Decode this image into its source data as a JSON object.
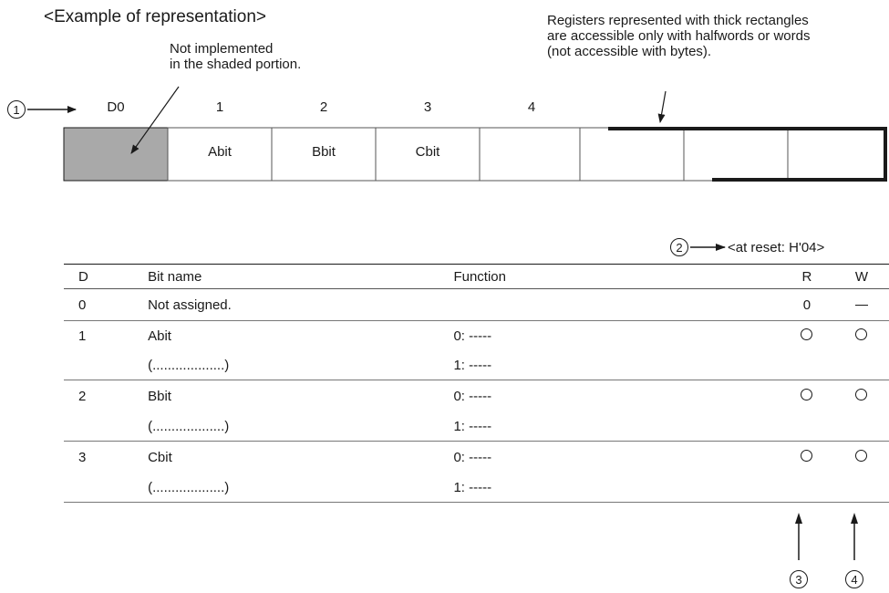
{
  "header": {
    "title": "<Example of representation>",
    "note_shaded": "Not implemented\nin the shaded portion.",
    "note_thick": "Registers represented with thick rectangles\nare accessible only with halfwords or words\n(not accessible with bytes)."
  },
  "register": {
    "bit_numbers": [
      "D0",
      "1",
      "2",
      "3",
      "4"
    ],
    "cells": [
      "",
      "Abit",
      "Bbit",
      "Cbit",
      "",
      "",
      "",
      ""
    ],
    "shaded_color": "#a9a9a9"
  },
  "callouts": [
    "1",
    "2",
    "3",
    "4"
  ],
  "reset": {
    "label": "<at reset: H'04>"
  },
  "table": {
    "headers": {
      "d": "D",
      "bit_name": "Bit name",
      "function": "Function",
      "r": "R",
      "w": "W"
    },
    "rows": [
      {
        "d": "0",
        "name": "Not assigned.",
        "sub": "",
        "f0": "",
        "f1": "",
        "r": "0",
        "w": "dash"
      },
      {
        "d": "1",
        "name": "Abit",
        "sub": "(...................)",
        "f0": "0: -----",
        "f1": "1: -----",
        "r": "circle",
        "w": "circle"
      },
      {
        "d": "2",
        "name": "Bbit",
        "sub": "(...................)",
        "f0": "0: -----",
        "f1": "1: -----",
        "r": "circle",
        "w": "circle"
      },
      {
        "d": "3",
        "name": "Cbit",
        "sub": "(...................)",
        "f0": "0: -----",
        "f1": "1: -----",
        "r": "circle",
        "w": "circle"
      }
    ]
  }
}
